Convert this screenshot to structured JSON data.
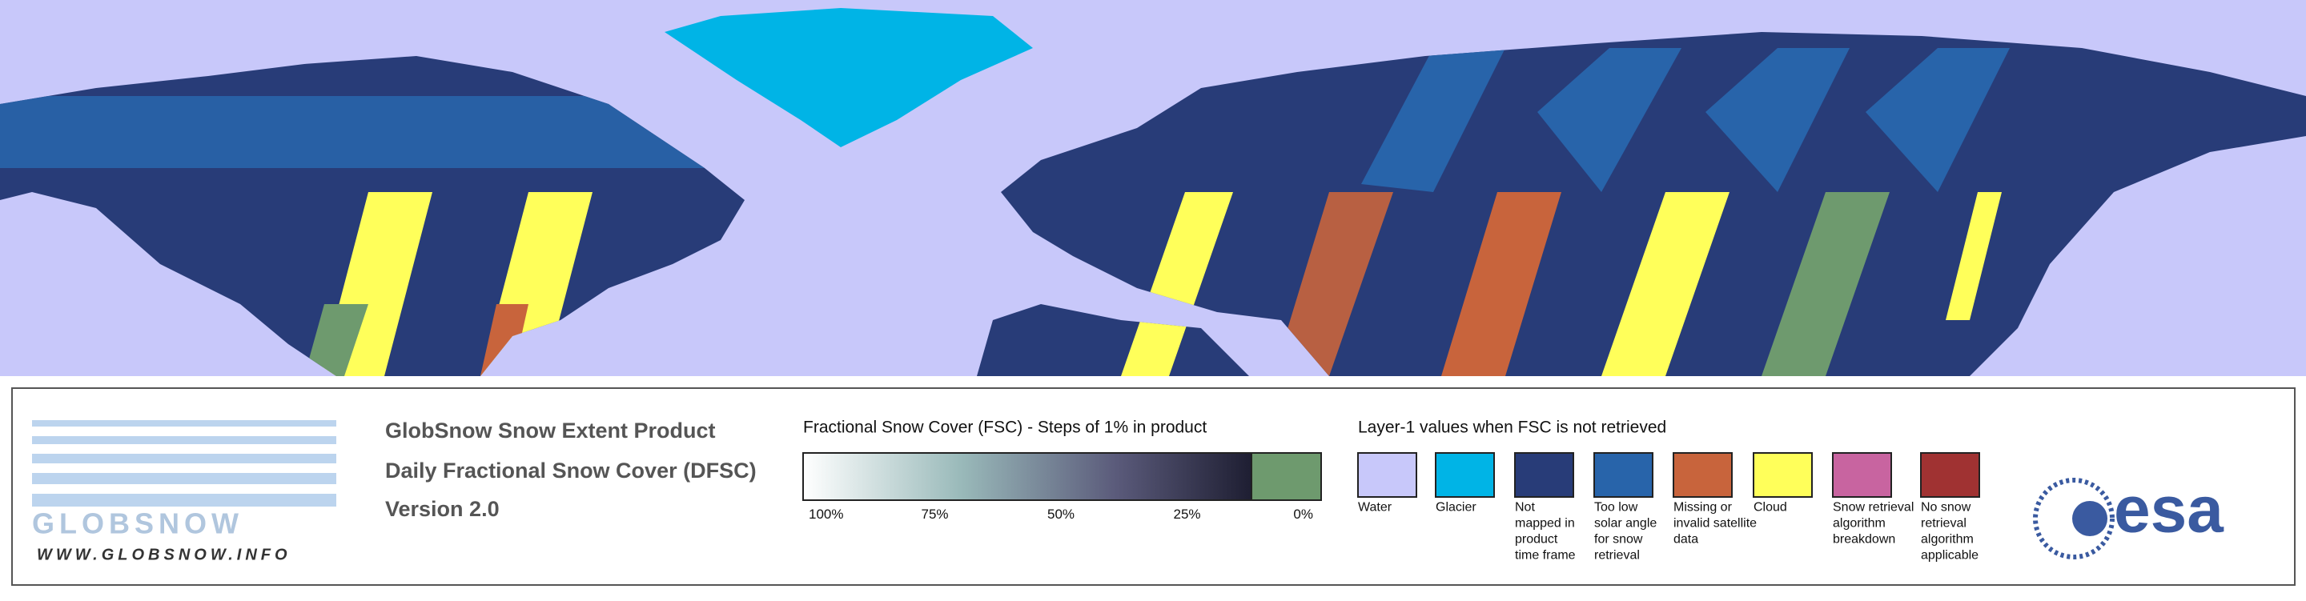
{
  "header": {
    "product": "GlobSnow Snow Extent Product",
    "subtitle": "Daily Fractional Snow Cover (DFSC)",
    "version": "Version 2.0"
  },
  "logo": {
    "name": "GLOBSNOW",
    "url": "WWW.GLOBSNOW.INFO",
    "agency": "esa"
  },
  "fsc_legend": {
    "title": "Fractional Snow Cover (FSC) - Steps of 1% in product",
    "labels": [
      "100%",
      "75%",
      "50%",
      "25%",
      "0%"
    ]
  },
  "layer_legend": {
    "title": "Layer-1 values when FSC is not retrieved",
    "items": [
      {
        "color": "#c8c8fa",
        "lines": [
          "Water"
        ]
      },
      {
        "color": "#00b4e6",
        "lines": [
          "Glacier"
        ]
      },
      {
        "color": "#283c78",
        "lines": [
          "Not",
          "mapped in",
          "product",
          "time frame"
        ]
      },
      {
        "color": "#2864aa",
        "lines": [
          "Too low",
          "solar angle",
          "for snow",
          "retrieval"
        ]
      },
      {
        "color": "#c8643c",
        "lines": [
          "Missing or",
          "invalid satellite",
          "data"
        ]
      },
      {
        "color": "#ffff5a",
        "lines": [
          "Cloud"
        ]
      },
      {
        "color": "#c864a0",
        "lines": [
          "Snow retrieval",
          "algorithm",
          "breakdown"
        ]
      },
      {
        "color": "#a03232",
        "lines": [
          "No snow",
          "retrieval",
          "algorithm",
          "applicable"
        ]
      }
    ]
  }
}
